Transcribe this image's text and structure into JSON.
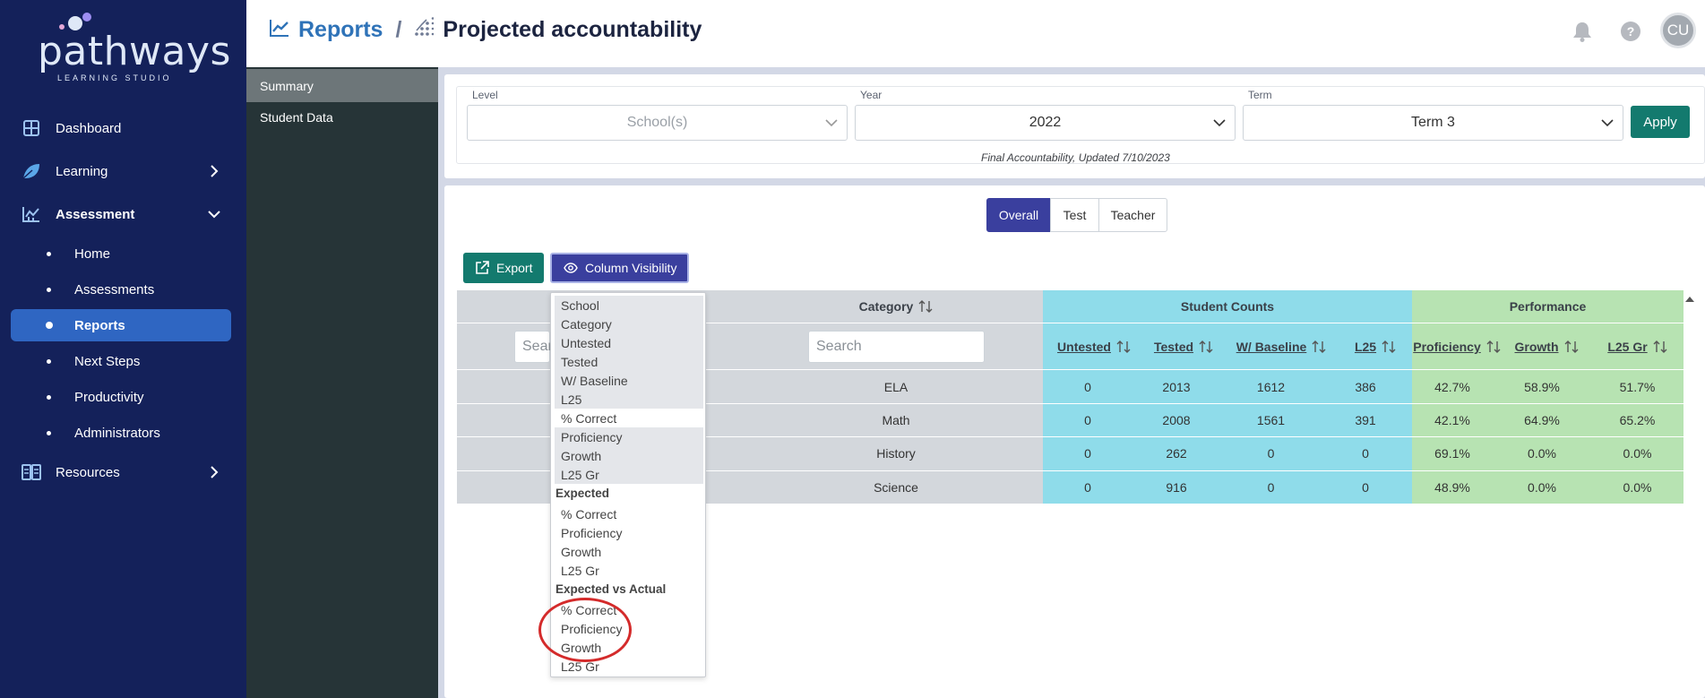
{
  "app": {
    "logo_text": "pathways",
    "logo_subtext": "LEARNING STUDIO"
  },
  "nav": {
    "dashboard": "Dashboard",
    "learning": "Learning",
    "assessment": "Assessment",
    "sub": {
      "home": "Home",
      "assessments": "Assessments",
      "reports": "Reports",
      "next_steps": "Next Steps",
      "productivity": "Productivity",
      "administrators": "Administrators"
    },
    "resources": "Resources"
  },
  "subsidebar": {
    "summary": "Summary",
    "student_data": "Student Data"
  },
  "header": {
    "reports": "Reports",
    "separator": "/",
    "title": "Projected accountability",
    "help": "?",
    "avatar": "CU"
  },
  "filters": {
    "level_label": "Level",
    "level_placeholder": "School(s)",
    "year_label": "Year",
    "year_value": "2022",
    "term_label": "Term",
    "term_value": "Term 3",
    "apply": "Apply",
    "note": "Final Accountability, Updated 7/10/2023"
  },
  "view_tabs": {
    "overall": "Overall",
    "test": "Test",
    "teacher": "Teacher"
  },
  "toolbar": {
    "export": "Export",
    "column_visibility": "Column Visibility"
  },
  "table": {
    "category_header": "Category",
    "student_counts": "Student Counts",
    "performance": "Performance",
    "search_placeholder": "Search",
    "school_search_placeholder": "Sear",
    "columns": {
      "untested": "Untested",
      "tested": "Tested",
      "baseline": "W/ Baseline",
      "l25": "L25",
      "proficiency": "Proficiency",
      "growth": "Growth",
      "l25gr": "L25 Gr"
    },
    "rows": [
      {
        "category": "ELA",
        "untested": "0",
        "tested": "2013",
        "baseline": "1612",
        "l25": "386",
        "proficiency": "42.7%",
        "growth": "58.9%",
        "l25gr": "51.7%"
      },
      {
        "category": "Math",
        "untested": "0",
        "tested": "2008",
        "baseline": "1561",
        "l25": "391",
        "proficiency": "42.1%",
        "growth": "64.9%",
        "l25gr": "65.2%"
      },
      {
        "category": "History",
        "untested": "0",
        "tested": "262",
        "baseline": "0",
        "l25": "0",
        "proficiency": "69.1%",
        "growth": "0.0%",
        "l25gr": "0.0%"
      },
      {
        "category": "Science",
        "untested": "0",
        "tested": "916",
        "baseline": "0",
        "l25": "0",
        "proficiency": "48.9%",
        "growth": "0.0%",
        "l25gr": "0.0%"
      }
    ]
  },
  "column_menu": {
    "items": [
      "School",
      "Category",
      "Untested",
      "Tested",
      "W/ Baseline",
      "L25",
      "% Correct",
      "Proficiency",
      "Growth",
      "L25 Gr"
    ],
    "expected_header": "Expected",
    "expected_items": [
      "% Correct",
      "Proficiency",
      "Growth",
      "L25 Gr"
    ],
    "eva_header": "Expected vs Actual",
    "eva_items": [
      "% Correct",
      "Proficiency",
      "Growth",
      "L25 Gr"
    ]
  },
  "colors": {
    "nav_bg": "#14215a",
    "nav_active": "#2f66c2",
    "accent_primary": "#3a3f9e",
    "accent_teal": "#137a6e",
    "student_counts_bg": "#8fdcea",
    "performance_bg": "#b7e3b2",
    "annotation_red": "#d42b2b"
  }
}
